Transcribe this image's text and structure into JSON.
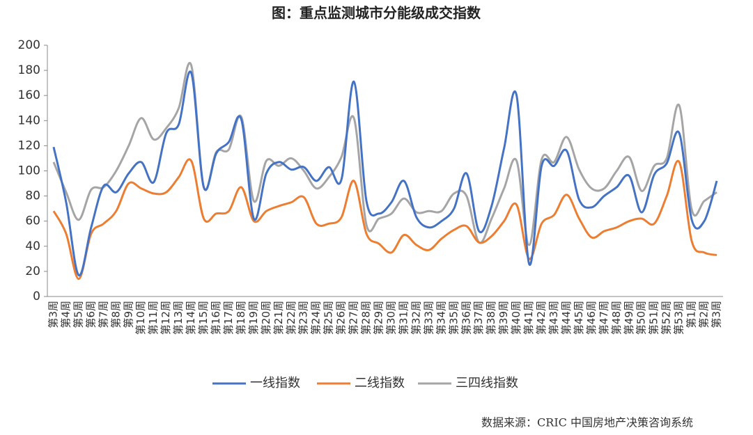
{
  "chart_data": {
    "type": "line",
    "title": "图：重点监测城市分能级成交指数",
    "source": "数据来源：CRIC 中国房地产决策咨询系统",
    "categories": [
      "第3周",
      "第4周",
      "第5周",
      "第6周",
      "第7周",
      "第8周",
      "第9周",
      "第10周",
      "第11周",
      "第12周",
      "第13周",
      "第14周",
      "第15周",
      "第16周",
      "第17周",
      "第18周",
      "第19周",
      "第20周",
      "第21周",
      "第22周",
      "第23周",
      "第24周",
      "第25周",
      "第26周",
      "第27周",
      "第28周",
      "第29周",
      "第30周",
      "第31周",
      "第32周",
      "第33周",
      "第34周",
      "第35周",
      "第36周",
      "第37周",
      "第38周",
      "第39周",
      "第40周",
      "第41周",
      "第42周",
      "第43周",
      "第44周",
      "第45周",
      "第46周",
      "第47周",
      "第48周",
      "第49周",
      "第50周",
      "第51周",
      "第52周",
      "第53周",
      "第1周",
      "第2周",
      "第3周"
    ],
    "series": [
      {
        "name": "一线指数",
        "color": "#4472c4",
        "values": [
          119,
          75,
          17,
          55,
          88,
          83,
          98,
          107,
          91,
          130,
          137,
          178,
          87,
          114,
          123,
          141,
          62,
          98,
          107,
          101,
          103,
          92,
          103,
          93,
          171,
          76,
          66,
          75,
          92,
          63,
          55,
          60,
          70,
          98,
          52,
          72,
          118,
          160,
          26,
          104,
          104,
          116,
          77,
          71,
          80,
          87,
          96,
          67,
          97,
          106,
          130,
          61,
          60,
          92
        ]
      },
      {
        "name": "二线指数",
        "color": "#ed7d31",
        "values": [
          68,
          50,
          14,
          50,
          58,
          68,
          90,
          86,
          82,
          83,
          95,
          108,
          62,
          66,
          68,
          87,
          60,
          68,
          72,
          75,
          79,
          58,
          58,
          63,
          92,
          50,
          42,
          35,
          49,
          41,
          37,
          46,
          53,
          56,
          43,
          48,
          60,
          73,
          30,
          58,
          65,
          81,
          62,
          47,
          52,
          55,
          60,
          62,
          58,
          80,
          107,
          44,
          35,
          33
        ]
      },
      {
        "name": "三四线指数",
        "color": "#a5a5a5",
        "values": [
          107,
          83,
          61,
          85,
          87,
          100,
          120,
          142,
          125,
          134,
          150,
          184,
          87,
          115,
          117,
          143,
          76,
          108,
          104,
          110,
          100,
          86,
          95,
          111,
          142,
          57,
          62,
          66,
          78,
          67,
          68,
          68,
          82,
          80,
          43,
          62,
          86,
          108,
          41,
          109,
          107,
          127,
          101,
          86,
          86,
          100,
          111,
          84,
          104,
          110,
          152,
          69,
          76,
          83
        ]
      }
    ],
    "ylim": [
      0,
      200
    ],
    "yticks": [
      0,
      20,
      40,
      60,
      80,
      100,
      120,
      140,
      160,
      180,
      200
    ],
    "grid": false,
    "legend": "bottom"
  }
}
